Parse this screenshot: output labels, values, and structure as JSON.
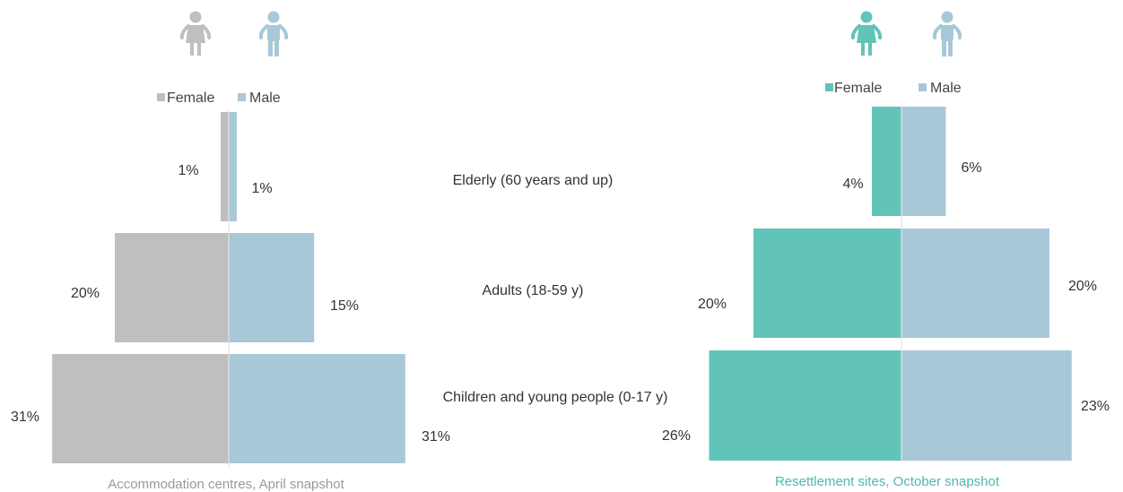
{
  "categories": [
    "Elderly (60 years and up)",
    "Adults (18-59 y)",
    "Children and young people (0-17 y)"
  ],
  "chart_data": [
    {
      "type": "bar",
      "orientation": "horizontal-population-pyramid",
      "caption": "Accommodation centres, April snapshot",
      "categories": [
        "Elderly (60 years and up)",
        "Adults (18-59 y)",
        "Children and young people (0-17 y)"
      ],
      "series": [
        {
          "name": "Female",
          "values": [
            1,
            20,
            31
          ],
          "labels": [
            "1%",
            "20%",
            "31%"
          ],
          "color": "#bfbfbf"
        },
        {
          "name": "Male",
          "values": [
            1,
            15,
            31
          ],
          "labels": [
            "1%",
            "15%",
            "31%"
          ],
          "color": "#a8c8d8"
        }
      ],
      "unit": "%",
      "caption_color": "#9a9a9a",
      "icons": {
        "female": "female-person-icon",
        "male": "male-person-icon"
      }
    },
    {
      "type": "bar",
      "orientation": "horizontal-population-pyramid",
      "caption": "Resettlement sites, October snapshot",
      "categories": [
        "Elderly (60 years and up)",
        "Adults (18-59 y)",
        "Children and young people (0-17 y)"
      ],
      "series": [
        {
          "name": "Female",
          "values": [
            4,
            20,
            26
          ],
          "labels": [
            "4%",
            "20%",
            "26%"
          ],
          "color": "#62c4b9"
        },
        {
          "name": "Male",
          "values": [
            6,
            20,
            23
          ],
          "labels": [
            "6%",
            "20%",
            "23%"
          ],
          "color": "#a8c8d8"
        }
      ],
      "unit": "%",
      "caption_color": "#4fb8ad",
      "icons": {
        "female": "female-person-icon",
        "male": "male-person-icon"
      }
    }
  ]
}
